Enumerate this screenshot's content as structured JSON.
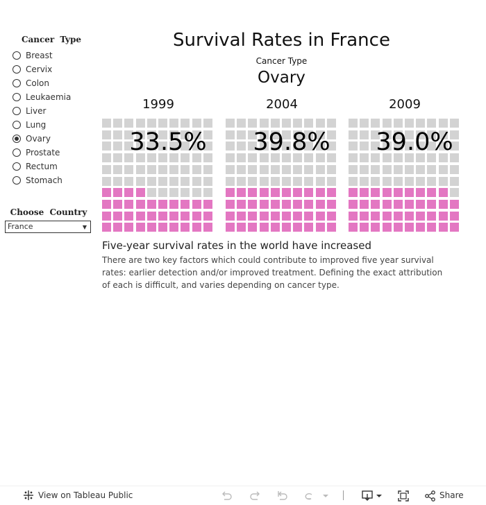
{
  "sidebar": {
    "filter_title": "Cancer  Type",
    "options": [
      {
        "label": "Breast",
        "selected": false
      },
      {
        "label": "Cervix",
        "selected": false
      },
      {
        "label": "Colon",
        "selected": false
      },
      {
        "label": "Leukaemia",
        "selected": false
      },
      {
        "label": "Liver",
        "selected": false
      },
      {
        "label": "Lung",
        "selected": false
      },
      {
        "label": "Ovary",
        "selected": true
      },
      {
        "label": "Prostate",
        "selected": false
      },
      {
        "label": "Rectum",
        "selected": false
      },
      {
        "label": "Stomach",
        "selected": false
      }
    ],
    "country_title": "Choose  Country",
    "country_value": "France"
  },
  "main": {
    "title": "Survival Rates in France",
    "cancer_type_label": "Cancer Type",
    "cancer_name": "Ovary",
    "panels": [
      {
        "year": "1999",
        "percent_label": "33.5%",
        "value": 33.5
      },
      {
        "year": "2004",
        "percent_label": "39.8%",
        "value": 39.8
      },
      {
        "year": "2009",
        "percent_label": "39.0%",
        "value": 39.0
      }
    ],
    "subheading": "Five-year survival rates in the world have increased",
    "body": "There are two key factors which could contribute to improved five year survival rates: earlier detection and/or improved treatment. Defining the exact attribution of each is difficult, and varies depending on cancer type."
  },
  "toolbar": {
    "view_on_label": "View on Tableau Public",
    "share_label": "Share",
    "icons": [
      "tableau-logo-icon",
      "undo-icon",
      "redo-icon",
      "revert-icon",
      "refresh-icon",
      "chevron-down-icon",
      "download-icon",
      "fullscreen-icon",
      "share-icon"
    ]
  },
  "colors": {
    "filled": "#e377c2",
    "empty": "#d3d3d3"
  }
}
